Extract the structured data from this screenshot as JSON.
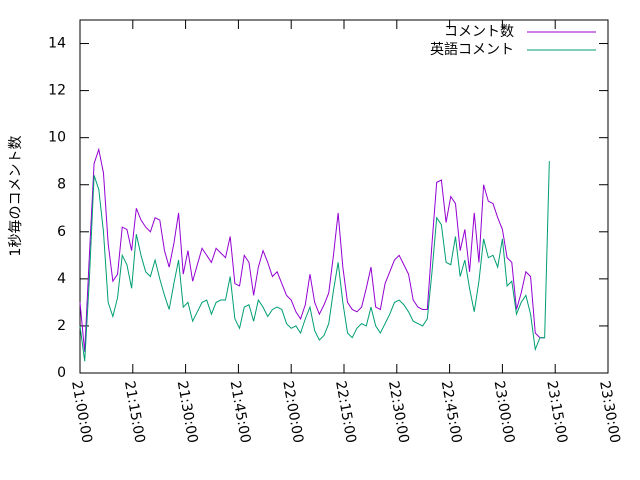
{
  "chart_data": {
    "type": "line",
    "y_label": "1秒毎のコメント数",
    "legend": "top right",
    "grid": false,
    "xlim": [
      "21:00:00",
      "23:30:00"
    ],
    "xticks": [
      "21:00:00",
      "21:15:00",
      "21:30:00",
      "21:45:00",
      "22:00:00",
      "22:15:00",
      "22:30:00",
      "22:45:00",
      "23:00:00",
      "23:15:00",
      "23:30:00"
    ],
    "ylim": [
      0,
      15
    ],
    "yticks": [
      0,
      2,
      4,
      6,
      8,
      10,
      12,
      14
    ],
    "x": [
      "21:00:00",
      "21:01:20",
      "21:02:40",
      "21:04:00",
      "21:05:20",
      "21:06:40",
      "21:08:00",
      "21:09:20",
      "21:10:40",
      "21:12:00",
      "21:13:20",
      "21:14:40",
      "21:16:00",
      "21:17:20",
      "21:18:40",
      "21:20:00",
      "21:21:20",
      "21:22:40",
      "21:24:00",
      "21:25:20",
      "21:26:40",
      "21:28:00",
      "21:29:20",
      "21:30:40",
      "21:32:00",
      "21:33:20",
      "21:34:40",
      "21:36:00",
      "21:37:20",
      "21:38:40",
      "21:40:00",
      "21:41:20",
      "21:42:40",
      "21:44:00",
      "21:45:20",
      "21:46:40",
      "21:48:00",
      "21:49:20",
      "21:50:40",
      "21:52:00",
      "21:53:20",
      "21:54:40",
      "21:56:00",
      "21:57:20",
      "21:58:40",
      "22:00:00",
      "22:01:20",
      "22:02:40",
      "22:04:00",
      "22:05:20",
      "22:06:40",
      "22:08:00",
      "22:09:20",
      "22:10:40",
      "22:12:00",
      "22:13:20",
      "22:14:40",
      "22:16:00",
      "22:17:20",
      "22:18:40",
      "22:20:00",
      "22:21:20",
      "22:22:40",
      "22:24:00",
      "22:25:20",
      "22:26:40",
      "22:28:00",
      "22:29:20",
      "22:30:40",
      "22:32:00",
      "22:33:20",
      "22:34:40",
      "22:36:00",
      "22:37:20",
      "22:38:40",
      "22:40:00",
      "22:41:20",
      "22:42:40",
      "22:44:00",
      "22:45:20",
      "22:46:40",
      "22:48:00",
      "22:49:20",
      "22:50:40",
      "22:52:00",
      "22:53:20",
      "22:54:40",
      "22:56:00",
      "22:57:20",
      "22:58:40",
      "23:00:00",
      "23:01:20",
      "23:02:40",
      "23:04:00",
      "23:05:20",
      "23:06:40",
      "23:08:00",
      "23:09:20",
      "23:10:40",
      "23:12:00",
      "23:13:20"
    ],
    "series": [
      {
        "name": "コメント数",
        "color": "#9400d3",
        "values": [
          3.0,
          0.9,
          5.0,
          8.9,
          9.5,
          8.5,
          5.5,
          3.9,
          4.2,
          6.2,
          6.1,
          5.2,
          7.0,
          6.5,
          6.2,
          6.0,
          6.6,
          6.5,
          5.2,
          4.5,
          5.5,
          6.8,
          4.2,
          5.2,
          3.9,
          4.6,
          5.3,
          5.0,
          4.7,
          5.3,
          5.1,
          4.9,
          5.8,
          3.8,
          3.7,
          5.0,
          4.7,
          3.3,
          4.5,
          5.2,
          4.7,
          4.1,
          4.3,
          3.8,
          3.3,
          3.1,
          2.6,
          2.3,
          2.9,
          4.2,
          3.0,
          2.5,
          2.9,
          3.4,
          5.0,
          6.8,
          4.5,
          3.0,
          2.7,
          2.6,
          2.8,
          3.6,
          4.5,
          2.8,
          2.7,
          3.8,
          4.3,
          4.8,
          5.0,
          4.6,
          4.2,
          3.1,
          2.8,
          2.7,
          2.7,
          5.5,
          8.1,
          8.2,
          6.4,
          7.5,
          7.2,
          5.2,
          6.1,
          4.3,
          6.8,
          4.7,
          8.0,
          7.3,
          7.2,
          6.6,
          6.1,
          4.9,
          4.7,
          2.7,
          3.4,
          4.3,
          4.1,
          1.7,
          1.5,
          1.5,
          null
        ]
      },
      {
        "name": "英語コメント",
        "color": "#009e73",
        "values": [
          2.0,
          0.5,
          4.0,
          8.4,
          7.8,
          6.0,
          3.0,
          2.4,
          3.2,
          5.0,
          4.6,
          3.6,
          5.9,
          5.0,
          4.3,
          4.1,
          4.8,
          4.0,
          3.3,
          2.7,
          3.8,
          4.8,
          2.8,
          3.0,
          2.2,
          2.6,
          3.0,
          3.1,
          2.5,
          3.0,
          3.1,
          3.1,
          4.1,
          2.3,
          1.9,
          2.8,
          2.9,
          2.2,
          3.1,
          2.8,
          2.4,
          2.7,
          2.8,
          2.7,
          2.1,
          1.9,
          2.0,
          1.7,
          2.3,
          2.8,
          1.8,
          1.4,
          1.6,
          2.1,
          3.5,
          4.7,
          3.0,
          1.7,
          1.5,
          1.9,
          2.1,
          2.0,
          2.8,
          2.0,
          1.7,
          2.1,
          2.5,
          3.0,
          3.1,
          2.9,
          2.6,
          2.2,
          2.1,
          2.0,
          2.3,
          4.3,
          6.6,
          6.3,
          4.7,
          4.6,
          5.8,
          4.1,
          4.8,
          3.6,
          2.6,
          3.9,
          5.7,
          4.9,
          5.0,
          4.5,
          5.7,
          3.7,
          3.9,
          2.5,
          3.0,
          3.3,
          2.5,
          1.0,
          1.5,
          1.5,
          9.0
        ]
      }
    ]
  }
}
